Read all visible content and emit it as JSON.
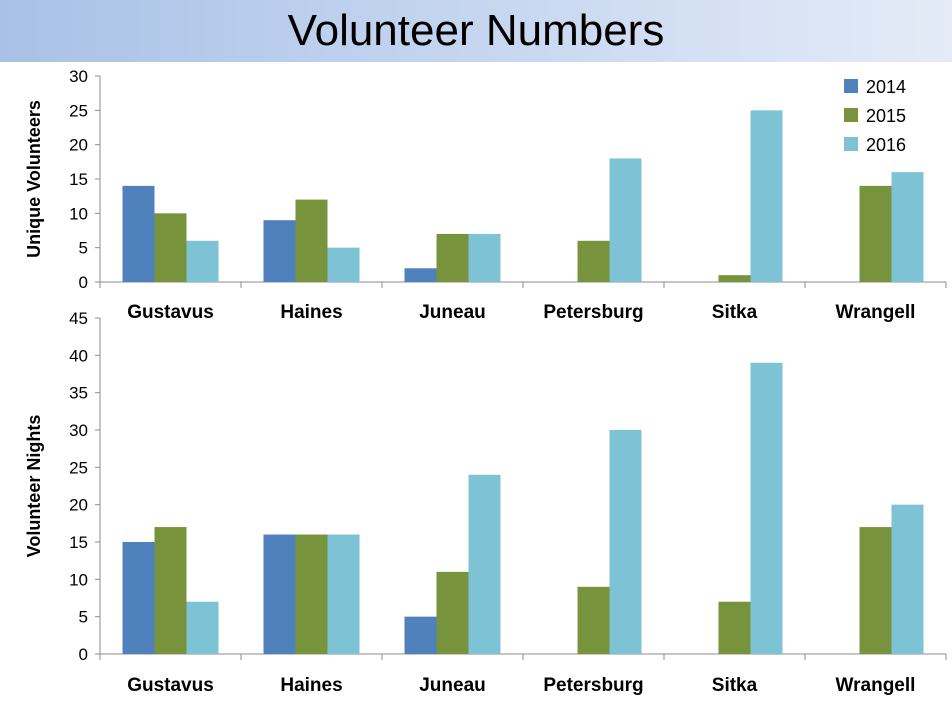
{
  "page": {
    "title": "Volunteer Numbers"
  },
  "colors": {
    "2014": "#4f81bd",
    "2015": "#77933c",
    "2016": "#7ec3d5"
  },
  "chart_data": [
    {
      "type": "bar",
      "title": "",
      "xlabel": "",
      "ylabel": "Unique Volunteers",
      "ylim": [
        0,
        30
      ],
      "yticks": [
        0,
        5,
        10,
        15,
        20,
        25,
        30
      ],
      "categories": [
        "Gustavus",
        "Haines",
        "Juneau",
        "Petersburg",
        "Sitka",
        "Wrangell"
      ],
      "series": [
        {
          "name": "2014",
          "values": [
            14,
            9,
            2,
            0,
            0,
            0
          ]
        },
        {
          "name": "2015",
          "values": [
            10,
            12,
            7,
            6,
            1,
            14
          ]
        },
        {
          "name": "2016",
          "values": [
            6,
            5,
            7,
            18,
            25,
            16
          ]
        }
      ],
      "legend": "top-right",
      "grid": false
    },
    {
      "type": "bar",
      "title": "",
      "xlabel": "",
      "ylabel": "Volunteer Nights",
      "ylim": [
        0,
        45
      ],
      "yticks": [
        0,
        5,
        10,
        15,
        20,
        25,
        30,
        35,
        40,
        45
      ],
      "categories": [
        "Gustavus",
        "Haines",
        "Juneau",
        "Petersburg",
        "Sitka",
        "Wrangell"
      ],
      "series": [
        {
          "name": "2014",
          "values": [
            15,
            16,
            5,
            0,
            0,
            0
          ]
        },
        {
          "name": "2015",
          "values": [
            17,
            16,
            11,
            9,
            7,
            17
          ]
        },
        {
          "name": "2016",
          "values": [
            7,
            16,
            24,
            30,
            39,
            20
          ]
        }
      ],
      "legend": "none",
      "grid": false
    }
  ]
}
